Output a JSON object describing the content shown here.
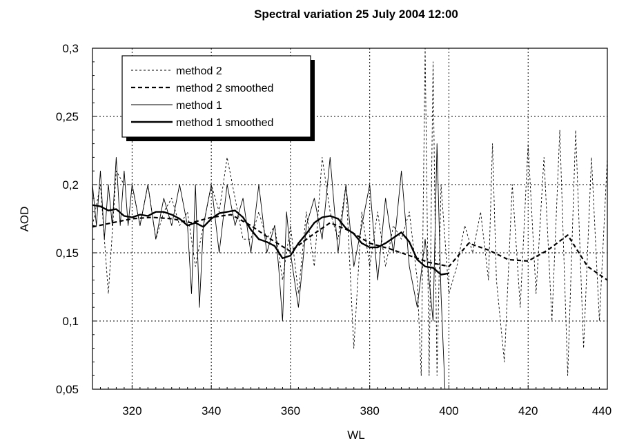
{
  "chart_data": {
    "type": "line",
    "title": "Spectral variation 25 July 2004 12:00",
    "xlabel": "WL",
    "ylabel": "AOD",
    "xlim": [
      310,
      440
    ],
    "ylim": [
      0.05,
      0.3
    ],
    "x_ticks": [
      320,
      340,
      360,
      380,
      400,
      420,
      440
    ],
    "y_ticks": [
      0.05,
      0.1,
      0.15,
      0.2,
      0.25,
      0.3
    ],
    "x_tick_labels": [
      "320",
      "340",
      "360",
      "380",
      "400",
      "420",
      "440"
    ],
    "y_tick_labels": [
      "0,05",
      "0,1",
      "0,15",
      "0,2",
      "0,25",
      "0,3"
    ],
    "grid": true,
    "legend_position": "top-left",
    "series": [
      {
        "name": "method 2",
        "style": "dashed-thin",
        "x": [
          310,
          312,
          314,
          316,
          318,
          320,
          322,
          324,
          326,
          328,
          330,
          332,
          334,
          336,
          338,
          340,
          342,
          344,
          346,
          348,
          350,
          352,
          354,
          356,
          358,
          360,
          362,
          364,
          366,
          368,
          370,
          372,
          374,
          376,
          378,
          380,
          382,
          384,
          386,
          388,
          390,
          392,
          393,
          394,
          395,
          396,
          397,
          398,
          400,
          402,
          404,
          406,
          408,
          410,
          411,
          412,
          414,
          416,
          418,
          420,
          422,
          424,
          426,
          428,
          430,
          432,
          434,
          436,
          438,
          440
        ],
        "y": [
          0.17,
          0.2,
          0.12,
          0.21,
          0.2,
          0.2,
          0.17,
          0.2,
          0.16,
          0.18,
          0.19,
          0.17,
          0.18,
          0.14,
          0.17,
          0.2,
          0.18,
          0.22,
          0.19,
          0.16,
          0.16,
          0.18,
          0.16,
          0.17,
          0.13,
          0.17,
          0.12,
          0.18,
          0.14,
          0.22,
          0.18,
          0.16,
          0.2,
          0.08,
          0.18,
          0.14,
          0.18,
          0.14,
          0.17,
          0.16,
          0.18,
          0.13,
          0.06,
          0.3,
          0.06,
          0.29,
          0.06,
          0.2,
          0.12,
          0.14,
          0.17,
          0.15,
          0.18,
          0.13,
          0.23,
          0.13,
          0.07,
          0.2,
          0.11,
          0.23,
          0.12,
          0.22,
          0.1,
          0.24,
          0.06,
          0.24,
          0.08,
          0.22,
          0.1,
          0.22
        ]
      },
      {
        "name": "method 2 smoothed",
        "style": "dashed-thick",
        "x": [
          310,
          315,
          320,
          325,
          330,
          335,
          340,
          345,
          350,
          355,
          360,
          365,
          370,
          375,
          380,
          385,
          390,
          395,
          400,
          405,
          410,
          415,
          420,
          425,
          430,
          435,
          440
        ],
        "y": [
          0.169,
          0.172,
          0.175,
          0.176,
          0.175,
          0.172,
          0.176,
          0.178,
          0.17,
          0.16,
          0.151,
          0.162,
          0.172,
          0.166,
          0.157,
          0.153,
          0.148,
          0.143,
          0.14,
          0.157,
          0.152,
          0.145,
          0.144,
          0.152,
          0.163,
          0.14,
          0.13
        ]
      },
      {
        "name": "method 1",
        "style": "solid-thin",
        "x": [
          310,
          311,
          312,
          313,
          314,
          315,
          316,
          317,
          318,
          319,
          320,
          322,
          324,
          326,
          328,
          330,
          332,
          334,
          335,
          336,
          337,
          338,
          340,
          342,
          344,
          346,
          348,
          350,
          352,
          354,
          356,
          357,
          358,
          359,
          360,
          362,
          364,
          366,
          368,
          370,
          372,
          374,
          376,
          378,
          380,
          382,
          384,
          386,
          388,
          390,
          392,
          394,
          396,
          397,
          398,
          399
        ],
        "y": [
          0.2,
          0.17,
          0.21,
          0.16,
          0.2,
          0.17,
          0.22,
          0.17,
          0.21,
          0.17,
          0.2,
          0.17,
          0.2,
          0.16,
          0.19,
          0.17,
          0.2,
          0.17,
          0.12,
          0.2,
          0.11,
          0.17,
          0.2,
          0.15,
          0.2,
          0.17,
          0.19,
          0.15,
          0.2,
          0.15,
          0.17,
          0.14,
          0.1,
          0.18,
          0.15,
          0.11,
          0.17,
          0.19,
          0.16,
          0.22,
          0.15,
          0.2,
          0.14,
          0.17,
          0.2,
          0.13,
          0.19,
          0.15,
          0.21,
          0.14,
          0.11,
          0.16,
          0.1,
          0.23,
          0.12,
          0.05
        ]
      },
      {
        "name": "method 1 smoothed",
        "style": "solid-thick",
        "x": [
          310,
          312,
          314,
          316,
          318,
          320,
          322,
          324,
          326,
          328,
          330,
          332,
          334,
          336,
          338,
          340,
          342,
          344,
          346,
          348,
          350,
          352,
          354,
          356,
          358,
          360,
          362,
          364,
          366,
          368,
          370,
          372,
          374,
          376,
          378,
          380,
          382,
          384,
          386,
          388,
          390,
          392,
          394,
          396,
          398,
          400
        ],
        "y": [
          0.185,
          0.184,
          0.181,
          0.182,
          0.177,
          0.176,
          0.178,
          0.177,
          0.18,
          0.18,
          0.178,
          0.175,
          0.17,
          0.172,
          0.169,
          0.175,
          0.179,
          0.18,
          0.181,
          0.176,
          0.167,
          0.16,
          0.158,
          0.155,
          0.146,
          0.148,
          0.157,
          0.164,
          0.172,
          0.176,
          0.177,
          0.175,
          0.168,
          0.164,
          0.157,
          0.154,
          0.154,
          0.157,
          0.161,
          0.165,
          0.158,
          0.145,
          0.14,
          0.139,
          0.134,
          0.135
        ]
      }
    ]
  }
}
